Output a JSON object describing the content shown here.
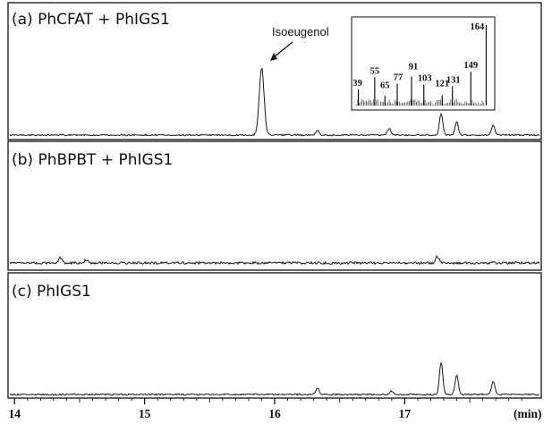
{
  "chart_data": {
    "type": "line",
    "x_axis": {
      "ticks": [
        14,
        15,
        16,
        17
      ],
      "tick_labels": [
        "14",
        "15",
        "16",
        "17"
      ],
      "unit_label": "(min)",
      "range": [
        13.95,
        18.05
      ]
    },
    "panels": [
      {
        "label": "(a) PhCFAT + PhIGS1",
        "annotation": {
          "text": "Isoeugenol",
          "at_x": 15.9
        },
        "peaks": [
          {
            "x": 15.9,
            "height": 0.79
          },
          {
            "x": 16.33,
            "height": 0.05
          },
          {
            "x": 16.88,
            "height": 0.08
          },
          {
            "x": 17.28,
            "height": 0.25
          },
          {
            "x": 17.4,
            "height": 0.16
          },
          {
            "x": 17.68,
            "height": 0.11
          }
        ],
        "inset": {
          "type": "mass_spectrum",
          "peak_labels": [
            "39",
            "55",
            "65",
            "77",
            "91",
            "103",
            "121",
            "131",
            "149",
            "164"
          ],
          "peaks": [
            {
              "mz": 39,
              "intensity": 0.2
            },
            {
              "mz": 55,
              "intensity": 0.35
            },
            {
              "mz": 65,
              "intensity": 0.12
            },
            {
              "mz": 77,
              "intensity": 0.27
            },
            {
              "mz": 91,
              "intensity": 0.36
            },
            {
              "mz": 103,
              "intensity": 0.26
            },
            {
              "mz": 121,
              "intensity": 0.13
            },
            {
              "mz": 131,
              "intensity": 0.24
            },
            {
              "mz": 149,
              "intensity": 0.42
            },
            {
              "mz": 164,
              "intensity": 1.0
            }
          ],
          "mz_range": [
            35,
            168
          ]
        }
      },
      {
        "label": "(b) PhBPBT + PhIGS1",
        "peaks": [
          {
            "x": 14.35,
            "height": 0.05
          },
          {
            "x": 14.55,
            "height": 0.03
          },
          {
            "x": 17.25,
            "height": 0.07
          }
        ]
      },
      {
        "label": "(c) PhIGS1",
        "peaks": [
          {
            "x": 16.33,
            "height": 0.07
          },
          {
            "x": 16.9,
            "height": 0.04
          },
          {
            "x": 17.28,
            "height": 0.36
          },
          {
            "x": 17.4,
            "height": 0.22
          },
          {
            "x": 17.68,
            "height": 0.14
          }
        ]
      }
    ],
    "colors": {
      "trace": "#1a1a1a",
      "frame": "#111111",
      "background": "#ffffff"
    }
  }
}
